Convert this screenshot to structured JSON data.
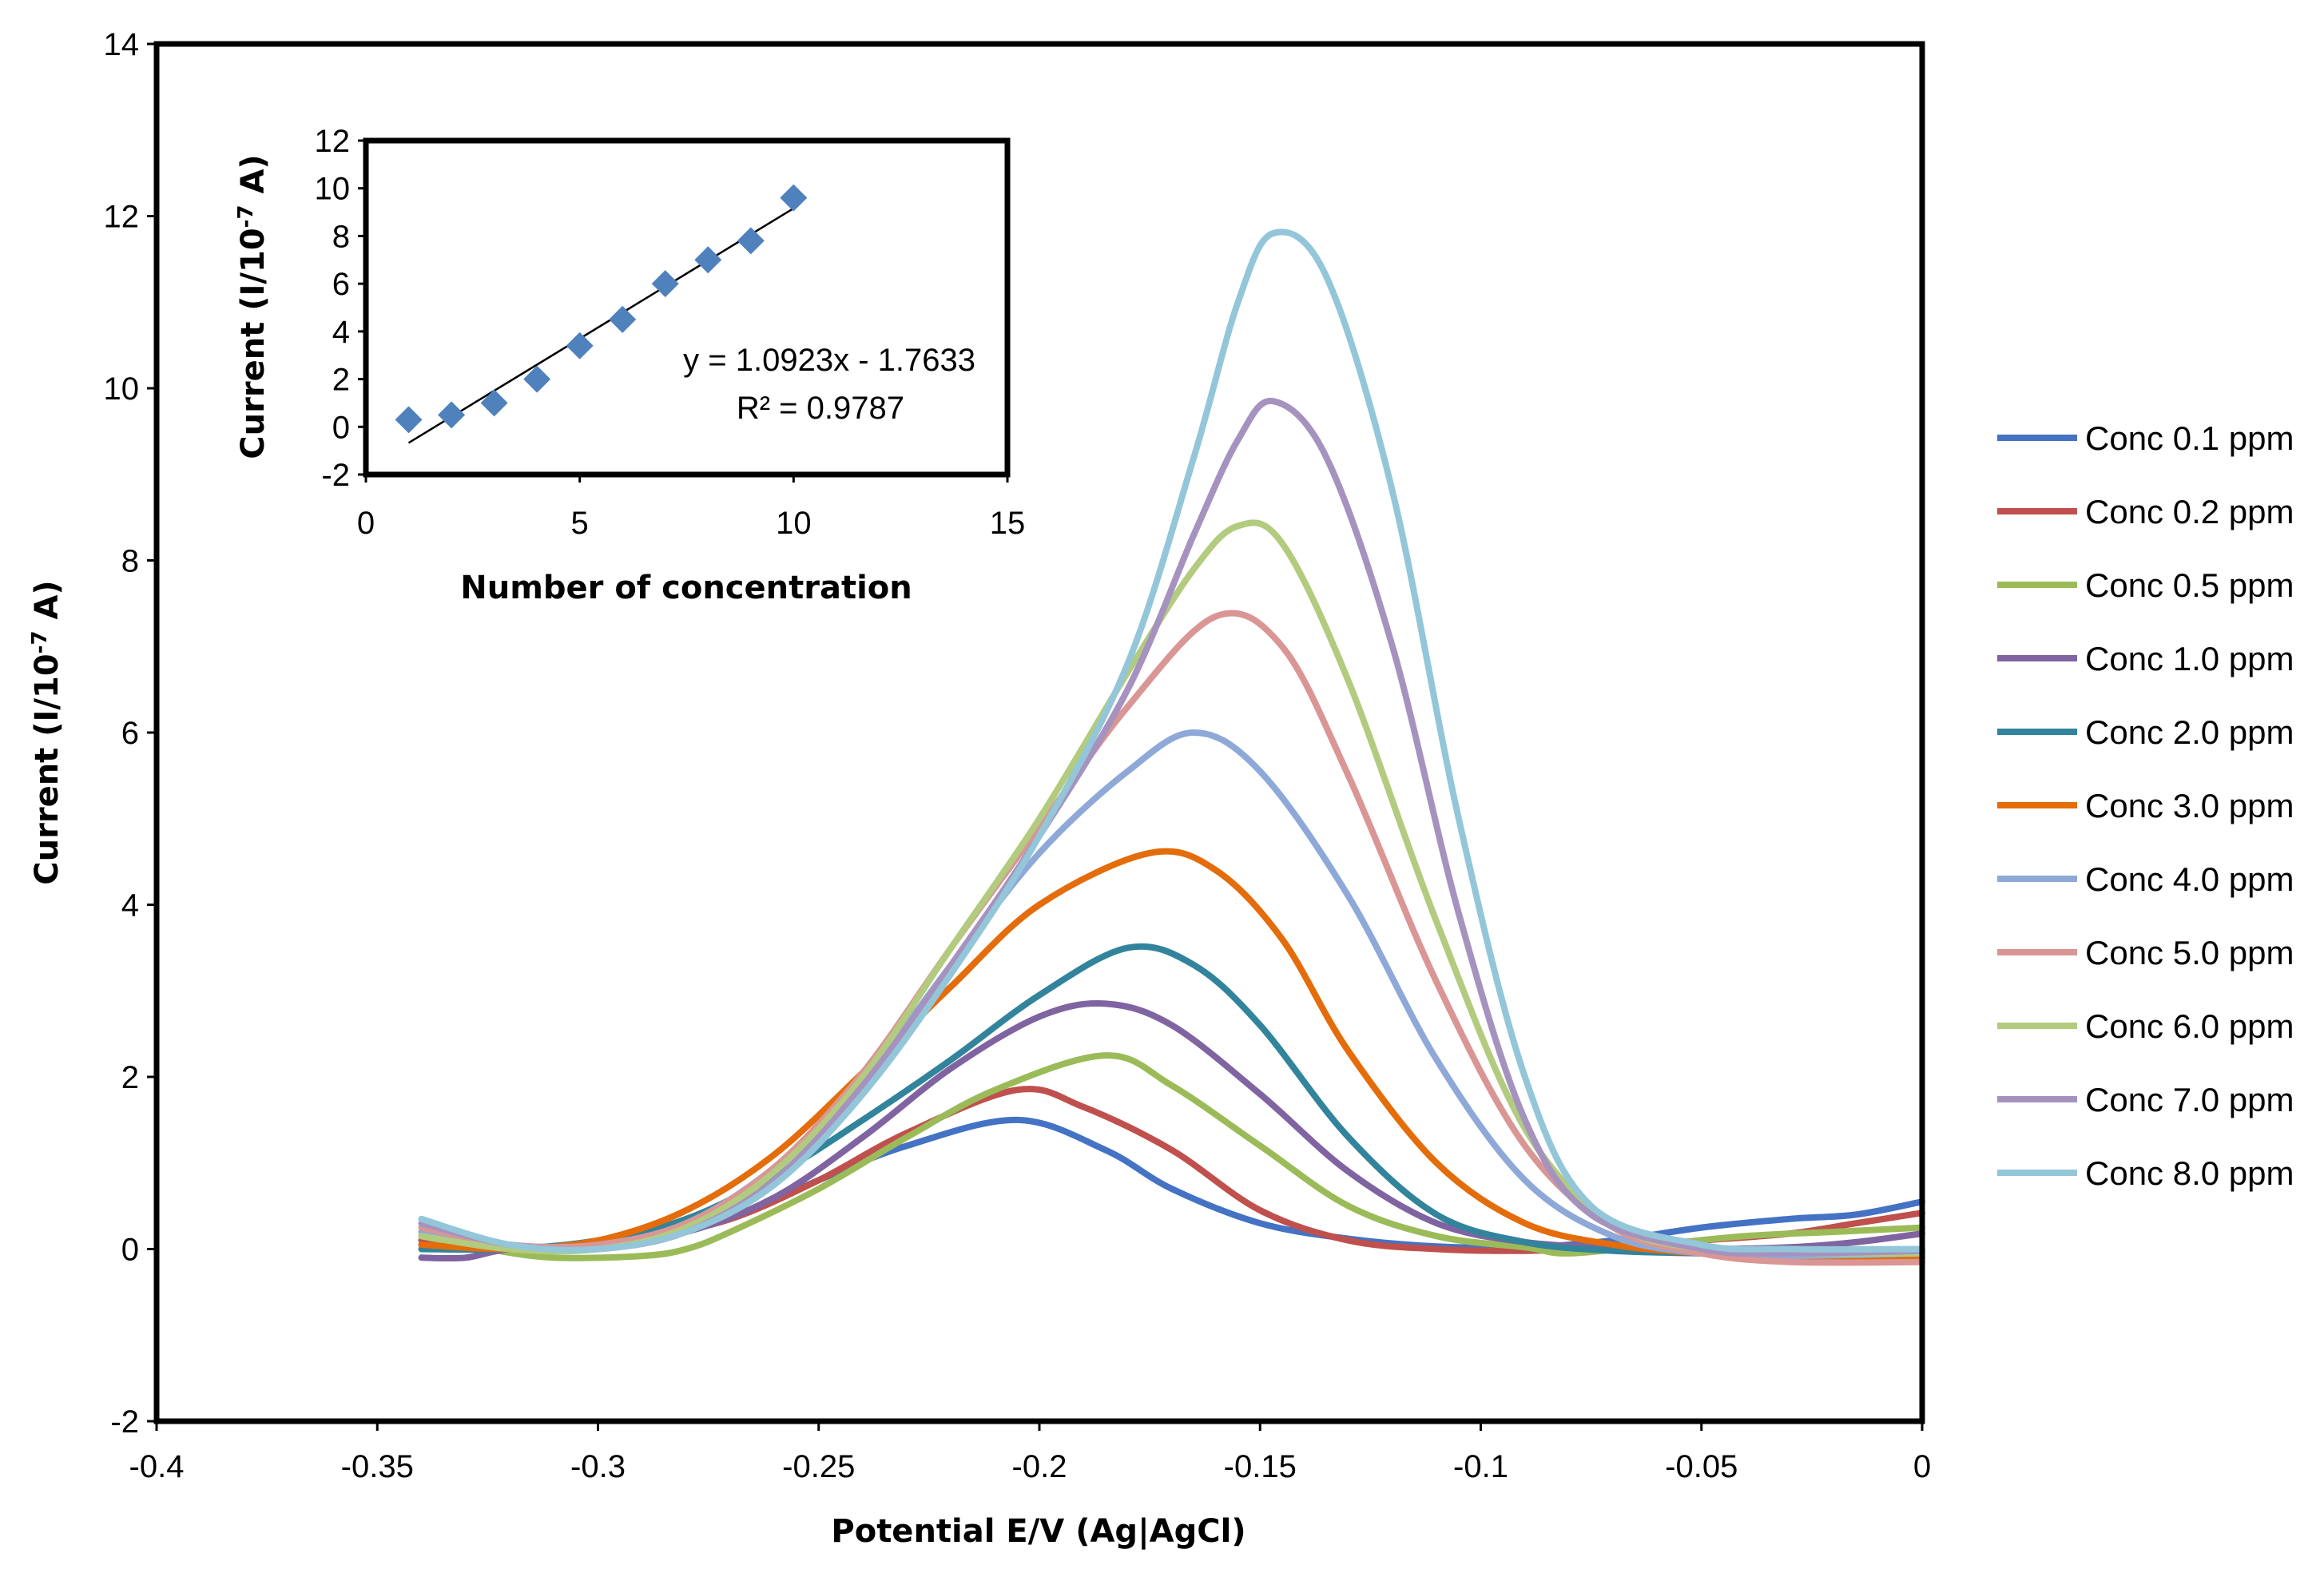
{
  "chart_data": [
    {
      "type": "line",
      "title": "",
      "xlabel": "Potential E/V (Ag|AgCl)",
      "ylabel": "Current (I/10",
      "ylabel_exp": "-7",
      "ylabel_tail": " A)",
      "xlim": [
        -0.4,
        0
      ],
      "ylim": [
        -2,
        14
      ],
      "xticks": [
        -0.4,
        -0.35,
        -0.3,
        -0.25,
        -0.2,
        -0.15,
        -0.1,
        -0.05,
        0
      ],
      "xtick_labels": [
        "-0.4",
        "-0.35",
        "-0.3",
        "-0.25",
        "-0.2",
        "-0.15",
        "-0.1",
        "-0.05",
        "0"
      ],
      "yticks": [
        -2,
        0,
        2,
        4,
        6,
        8,
        10,
        12,
        14
      ],
      "ytick_labels": [
        "-2",
        "0",
        "2",
        "4",
        "6",
        "8",
        "10",
        "12",
        "14"
      ],
      "legend_position": "right",
      "series": [
        {
          "name": "Conc 0.1 ppm",
          "color": "#4472C4",
          "points": [
            [
              -0.34,
              0.05
            ],
            [
              -0.33,
              0.0
            ],
            [
              -0.31,
              0.03
            ],
            [
              -0.29,
              0.15
            ],
            [
              -0.27,
              0.35
            ],
            [
              -0.25,
              0.8
            ],
            [
              -0.23,
              1.2
            ],
            [
              -0.205,
              1.5
            ],
            [
              -0.185,
              1.15
            ],
            [
              -0.17,
              0.7
            ],
            [
              -0.15,
              0.3
            ],
            [
              -0.13,
              0.12
            ],
            [
              -0.11,
              0.03
            ],
            [
              -0.09,
              0.02
            ],
            [
              -0.07,
              0.1
            ],
            [
              -0.05,
              0.25
            ],
            [
              -0.03,
              0.35
            ],
            [
              -0.015,
              0.4
            ],
            [
              0,
              0.55
            ]
          ]
        },
        {
          "name": "Conc 0.2 ppm",
          "color": "#C0504D",
          "points": [
            [
              -0.34,
              0.1
            ],
            [
              -0.33,
              0.0
            ],
            [
              -0.31,
              0.0
            ],
            [
              -0.29,
              0.12
            ],
            [
              -0.27,
              0.35
            ],
            [
              -0.25,
              0.8
            ],
            [
              -0.23,
              1.35
            ],
            [
              -0.205,
              1.85
            ],
            [
              -0.19,
              1.65
            ],
            [
              -0.17,
              1.15
            ],
            [
              -0.15,
              0.45
            ],
            [
              -0.13,
              0.1
            ],
            [
              -0.11,
              0.0
            ],
            [
              -0.09,
              -0.02
            ],
            [
              -0.07,
              0.02
            ],
            [
              -0.05,
              0.1
            ],
            [
              -0.03,
              0.18
            ],
            [
              -0.015,
              0.3
            ],
            [
              0,
              0.42
            ]
          ]
        },
        {
          "name": "Conc 0.5 ppm",
          "color": "#9BBB59",
          "points": [
            [
              -0.34,
              0.15
            ],
            [
              -0.325,
              0.0
            ],
            [
              -0.31,
              -0.1
            ],
            [
              -0.29,
              -0.08
            ],
            [
              -0.28,
              0.0
            ],
            [
              -0.27,
              0.2
            ],
            [
              -0.25,
              0.7
            ],
            [
              -0.23,
              1.3
            ],
            [
              -0.21,
              1.85
            ],
            [
              -0.185,
              2.25
            ],
            [
              -0.17,
              1.9
            ],
            [
              -0.15,
              1.2
            ],
            [
              -0.13,
              0.5
            ],
            [
              -0.11,
              0.15
            ],
            [
              -0.09,
              0.02
            ],
            [
              -0.08,
              -0.05
            ],
            [
              -0.06,
              0.05
            ],
            [
              -0.04,
              0.15
            ],
            [
              -0.02,
              0.2
            ],
            [
              0,
              0.25
            ]
          ]
        },
        {
          "name": "Conc 1.0 ppm",
          "color": "#8064A2",
          "points": [
            [
              -0.34,
              -0.1
            ],
            [
              -0.33,
              -0.1
            ],
            [
              -0.32,
              0.0
            ],
            [
              -0.3,
              0.05
            ],
            [
              -0.28,
              0.2
            ],
            [
              -0.26,
              0.6
            ],
            [
              -0.24,
              1.3
            ],
            [
              -0.22,
              2.1
            ],
            [
              -0.2,
              2.7
            ],
            [
              -0.185,
              2.85
            ],
            [
              -0.17,
              2.6
            ],
            [
              -0.15,
              1.8
            ],
            [
              -0.13,
              0.9
            ],
            [
              -0.11,
              0.3
            ],
            [
              -0.09,
              0.08
            ],
            [
              -0.07,
              0.02
            ],
            [
              -0.05,
              0.0
            ],
            [
              -0.03,
              0.02
            ],
            [
              -0.015,
              0.08
            ],
            [
              0,
              0.18
            ]
          ]
        },
        {
          "name": "Conc 2.0 ppm",
          "color": "#31849B",
          "points": [
            [
              -0.34,
              0.0
            ],
            [
              -0.32,
              0.0
            ],
            [
              -0.3,
              0.1
            ],
            [
              -0.28,
              0.35
            ],
            [
              -0.26,
              0.85
            ],
            [
              -0.24,
              1.5
            ],
            [
              -0.22,
              2.2
            ],
            [
              -0.2,
              2.95
            ],
            [
              -0.18,
              3.5
            ],
            [
              -0.165,
              3.3
            ],
            [
              -0.15,
              2.6
            ],
            [
              -0.13,
              1.3
            ],
            [
              -0.11,
              0.4
            ],
            [
              -0.09,
              0.08
            ],
            [
              -0.07,
              -0.02
            ],
            [
              -0.05,
              -0.05
            ],
            [
              -0.03,
              -0.08
            ],
            [
              0,
              -0.05
            ]
          ]
        },
        {
          "name": "Conc 3.0 ppm",
          "color": "#E46C0A",
          "points": [
            [
              -0.34,
              0.05
            ],
            [
              -0.32,
              0.0
            ],
            [
              -0.3,
              0.1
            ],
            [
              -0.28,
              0.45
            ],
            [
              -0.26,
              1.1
            ],
            [
              -0.24,
              2.05
            ],
            [
              -0.22,
              3.05
            ],
            [
              -0.2,
              4.0
            ],
            [
              -0.175,
              4.6
            ],
            [
              -0.16,
              4.4
            ],
            [
              -0.145,
              3.6
            ],
            [
              -0.13,
              2.3
            ],
            [
              -0.11,
              1.0
            ],
            [
              -0.09,
              0.3
            ],
            [
              -0.07,
              0.05
            ],
            [
              -0.05,
              -0.05
            ],
            [
              -0.03,
              -0.1
            ],
            [
              0,
              -0.1
            ]
          ]
        },
        {
          "name": "Conc 4.0 ppm",
          "color": "#8EA9D8",
          "points": [
            [
              -0.34,
              0.2
            ],
            [
              -0.32,
              0.02
            ],
            [
              -0.3,
              0.05
            ],
            [
              -0.28,
              0.3
            ],
            [
              -0.26,
              0.95
            ],
            [
              -0.24,
              1.95
            ],
            [
              -0.22,
              3.3
            ],
            [
              -0.2,
              4.6
            ],
            [
              -0.18,
              5.55
            ],
            [
              -0.165,
              6.0
            ],
            [
              -0.15,
              5.55
            ],
            [
              -0.13,
              4.1
            ],
            [
              -0.11,
              2.2
            ],
            [
              -0.09,
              0.8
            ],
            [
              -0.07,
              0.15
            ],
            [
              -0.05,
              -0.05
            ],
            [
              -0.03,
              -0.08
            ],
            [
              0,
              -0.05
            ]
          ]
        },
        {
          "name": "Conc 5.0 ppm",
          "color": "#D99694",
          "points": [
            [
              -0.34,
              0.25
            ],
            [
              -0.32,
              0.05
            ],
            [
              -0.3,
              0.05
            ],
            [
              -0.28,
              0.3
            ],
            [
              -0.26,
              0.95
            ],
            [
              -0.24,
              2.05
            ],
            [
              -0.22,
              3.5
            ],
            [
              -0.2,
              4.9
            ],
            [
              -0.18,
              6.3
            ],
            [
              -0.16,
              7.35
            ],
            [
              -0.145,
              7.0
            ],
            [
              -0.13,
              5.5
            ],
            [
              -0.11,
              3.1
            ],
            [
              -0.09,
              1.2
            ],
            [
              -0.07,
              0.25
            ],
            [
              -0.05,
              -0.05
            ],
            [
              -0.03,
              -0.15
            ],
            [
              0,
              -0.15
            ]
          ]
        },
        {
          "name": "Conc 6.0 ppm",
          "color": "#B2CB7F",
          "points": [
            [
              -0.34,
              0.15
            ],
            [
              -0.32,
              0.0
            ],
            [
              -0.3,
              0.0
            ],
            [
              -0.28,
              0.25
            ],
            [
              -0.26,
              0.9
            ],
            [
              -0.24,
              2.0
            ],
            [
              -0.22,
              3.5
            ],
            [
              -0.2,
              5.0
            ],
            [
              -0.18,
              6.7
            ],
            [
              -0.165,
              7.9
            ],
            [
              -0.155,
              8.4
            ],
            [
              -0.145,
              8.2
            ],
            [
              -0.13,
              6.6
            ],
            [
              -0.11,
              3.8
            ],
            [
              -0.09,
              1.4
            ],
            [
              -0.07,
              0.3
            ],
            [
              -0.05,
              0.0
            ],
            [
              -0.03,
              -0.05
            ],
            [
              0,
              -0.05
            ]
          ]
        },
        {
          "name": "Conc 7.0 ppm",
          "color": "#A692BF",
          "points": [
            [
              -0.34,
              0.3
            ],
            [
              -0.32,
              0.05
            ],
            [
              -0.3,
              0.0
            ],
            [
              -0.28,
              0.2
            ],
            [
              -0.26,
              0.8
            ],
            [
              -0.24,
              1.9
            ],
            [
              -0.22,
              3.3
            ],
            [
              -0.2,
              4.8
            ],
            [
              -0.18,
              6.5
            ],
            [
              -0.165,
              8.3
            ],
            [
              -0.155,
              9.4
            ],
            [
              -0.147,
              9.85
            ],
            [
              -0.135,
              9.2
            ],
            [
              -0.12,
              7.0
            ],
            [
              -0.105,
              3.9
            ],
            [
              -0.09,
              1.5
            ],
            [
              -0.075,
              0.4
            ],
            [
              -0.05,
              0.0
            ],
            [
              -0.03,
              -0.05
            ],
            [
              0,
              -0.02
            ]
          ]
        },
        {
          "name": "Conc 8.0 ppm",
          "color": "#93C6D9",
          "points": [
            [
              -0.34,
              0.35
            ],
            [
              -0.32,
              0.05
            ],
            [
              -0.3,
              0.0
            ],
            [
              -0.28,
              0.2
            ],
            [
              -0.26,
              0.75
            ],
            [
              -0.24,
              1.8
            ],
            [
              -0.22,
              3.2
            ],
            [
              -0.2,
              4.8
            ],
            [
              -0.18,
              6.8
            ],
            [
              -0.165,
              9.2
            ],
            [
              -0.155,
              11.0
            ],
            [
              -0.147,
              11.8
            ],
            [
              -0.135,
              11.3
            ],
            [
              -0.12,
              8.8
            ],
            [
              -0.105,
              5.0
            ],
            [
              -0.09,
              2.0
            ],
            [
              -0.075,
              0.5
            ],
            [
              -0.05,
              0.05
            ],
            [
              -0.03,
              0.0
            ],
            [
              0,
              0.0
            ]
          ]
        }
      ]
    },
    {
      "type": "scatter",
      "title": "",
      "xlabel": "Number of concentration",
      "ylabel": "Current (I/10",
      "ylabel_exp": "-7",
      "ylabel_tail": " A)",
      "xlim": [
        0,
        15
      ],
      "ylim": [
        -2,
        12
      ],
      "xticks": [
        0,
        5,
        10,
        15
      ],
      "xtick_labels": [
        "0",
        "5",
        "10",
        "15"
      ],
      "yticks": [
        -2,
        0,
        2,
        4,
        6,
        8,
        10,
        12
      ],
      "ytick_labels": [
        "-2",
        "0",
        "2",
        "4",
        "6",
        "8",
        "10",
        "12"
      ],
      "marker_color": "#4F81BD",
      "points": [
        [
          1,
          0.3
        ],
        [
          2,
          0.5
        ],
        [
          3,
          1.0
        ],
        [
          4,
          2.0
        ],
        [
          5,
          3.4
        ],
        [
          6,
          4.5
        ],
        [
          7,
          6.0
        ],
        [
          8,
          7.0
        ],
        [
          9,
          7.8
        ],
        [
          10,
          9.6
        ]
      ],
      "trendline": {
        "slope": 1.0923,
        "intercept": -1.7633,
        "x_range": [
          1,
          10
        ]
      },
      "equation": "y = 1.0923x - 1.7633",
      "r_squared": "R² = 0.9787"
    }
  ]
}
